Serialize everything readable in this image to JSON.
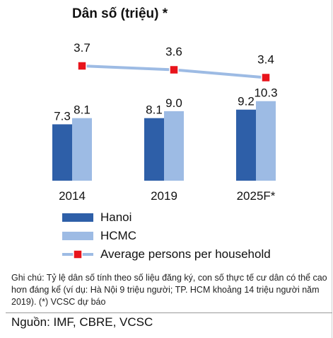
{
  "title": "Dân số (triệu) *",
  "chart_data": {
    "type": "bar",
    "categories": [
      "2014",
      "2019",
      "2025F*"
    ],
    "series": [
      {
        "name": "Hanoi",
        "type": "bar",
        "values": [
          7.3,
          8.1,
          9.2
        ],
        "color": "#2e5fa8"
      },
      {
        "name": "HCMC",
        "type": "bar",
        "values": [
          8.1,
          9.0,
          10.3
        ],
        "color": "#9dbbe4"
      },
      {
        "name": "Average persons per household",
        "type": "line",
        "values": [
          3.7,
          3.6,
          3.4
        ],
        "color": "#9dbbe4",
        "marker_color": "#e8141c"
      }
    ],
    "legend_position": "bottom-left",
    "grid": false
  },
  "note": "Ghi chú: Tỷ lệ dân số tính theo số liệu đăng ký, con số thực tế cư dân có thể cao hơn đáng kể (ví dụ: Hà Nội 9 triệu người; TP. HCM khoảng 14 triệu người năm 2019). (*) VCSC dự báo",
  "source": "Nguồn: IMF, CBRE, VCSC"
}
